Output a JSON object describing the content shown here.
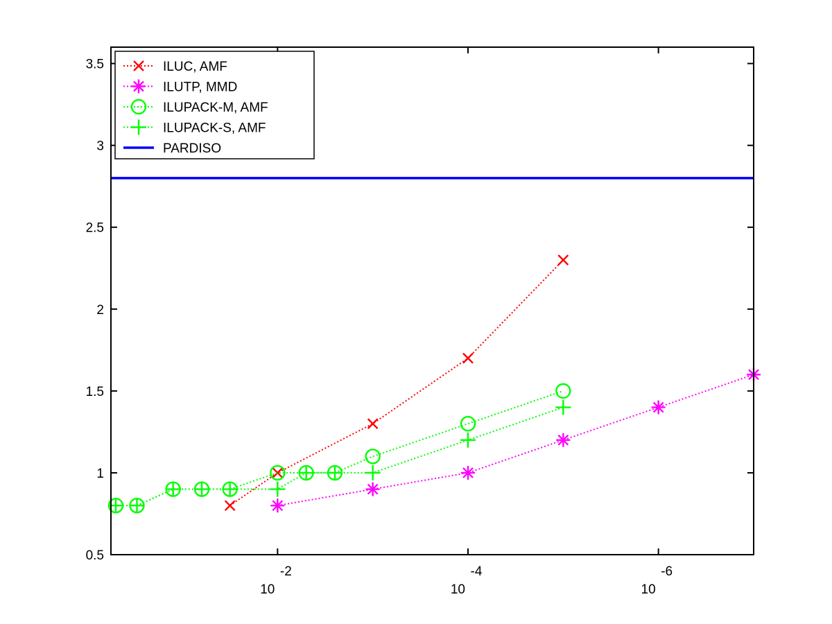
{
  "chart_data": {
    "type": "line",
    "title": "",
    "xlabel": "",
    "ylabel": "",
    "x_scale": "log",
    "x_reversed": true,
    "xlim": [
      0.56234,
      1e-07
    ],
    "ylim": [
      0.5,
      3.6
    ],
    "grid": false,
    "legend_position": "top-left",
    "x_ticks": [
      {
        "value": 0.01,
        "base": "10",
        "exponent": "-2"
      },
      {
        "value": 0.0001,
        "base": "10",
        "exponent": "-4"
      },
      {
        "value": 1e-06,
        "base": "10",
        "exponent": "-6"
      }
    ],
    "y_ticks": [
      {
        "value": 0.5,
        "label": "0.5"
      },
      {
        "value": 1,
        "label": "1"
      },
      {
        "value": 1.5,
        "label": "1.5"
      },
      {
        "value": 2,
        "label": "2"
      },
      {
        "value": 2.5,
        "label": "2.5"
      },
      {
        "value": 3,
        "label": "3"
      },
      {
        "value": 3.5,
        "label": "3.5"
      }
    ],
    "series": [
      {
        "name": "ILUC, AMF",
        "color": "#ff0000",
        "marker": "x",
        "line": "dotted",
        "points": [
          [
            0.031623,
            0.8
          ],
          [
            0.01,
            1.0
          ],
          [
            0.001,
            1.3
          ],
          [
            0.0001,
            1.7
          ],
          [
            1e-05,
            2.3
          ]
        ]
      },
      {
        "name": "ILUTP, MMD",
        "color": "#ff00ff",
        "marker": "asterisk",
        "line": "dotted",
        "points": [
          [
            0.01,
            0.8
          ],
          [
            0.001,
            0.9
          ],
          [
            0.0001,
            1.0
          ],
          [
            1e-05,
            1.2
          ],
          [
            1e-06,
            1.4
          ],
          [
            1e-07,
            1.6
          ]
        ]
      },
      {
        "name": "ILUPACK-M, AMF",
        "color": "#00ff00",
        "marker": "circle",
        "line": "dotted",
        "points": [
          [
            0.5,
            0.8
          ],
          [
            0.3,
            0.8
          ],
          [
            0.125,
            0.9
          ],
          [
            0.0625,
            0.9
          ],
          [
            0.031623,
            0.9
          ],
          [
            0.01,
            1.0
          ],
          [
            0.005,
            1.0
          ],
          [
            0.0025,
            1.0
          ],
          [
            0.001,
            1.1
          ],
          [
            0.0001,
            1.3
          ],
          [
            1e-05,
            1.5
          ]
        ]
      },
      {
        "name": "ILUPACK-S, AMF",
        "color": "#00ff00",
        "marker": "plus",
        "line": "dotted",
        "points": [
          [
            0.5,
            0.8
          ],
          [
            0.3,
            0.8
          ],
          [
            0.125,
            0.9
          ],
          [
            0.0625,
            0.9
          ],
          [
            0.031623,
            0.9
          ],
          [
            0.01,
            0.9
          ],
          [
            0.005,
            1.0
          ],
          [
            0.0025,
            1.0
          ],
          [
            0.001,
            1.0
          ],
          [
            0.0001,
            1.2
          ],
          [
            1e-05,
            1.4
          ]
        ]
      },
      {
        "name": "PARDISO",
        "color": "#0000ff",
        "marker": "none",
        "line": "solid",
        "points": [
          [
            0.56234,
            2.8
          ],
          [
            1e-07,
            2.8
          ]
        ]
      }
    ]
  }
}
